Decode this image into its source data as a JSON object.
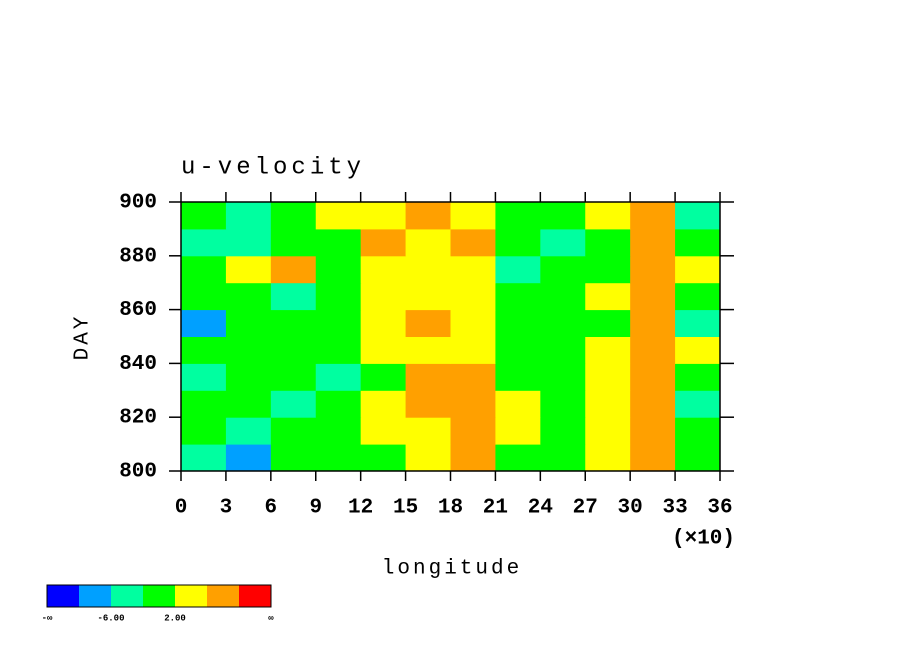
{
  "chart_data": {
    "type": "contour",
    "title": "u-velocity",
    "xlabel": "longitude",
    "ylabel": "DAY",
    "x_multiplier": "(×10)",
    "xlim": [
      0,
      36
    ],
    "xticks": [
      0,
      3,
      6,
      9,
      12,
      15,
      18,
      21,
      24,
      27,
      30,
      33,
      36
    ],
    "ylim": [
      800,
      900
    ],
    "yticks": [
      800,
      820,
      840,
      860,
      880,
      900
    ],
    "x": [
      1.5,
      4.5,
      7.5,
      10.5,
      13.5,
      16.5,
      19.5,
      22.5,
      25.5,
      28.5,
      31.5,
      34.5
    ],
    "y": [
      805,
      815,
      825,
      835,
      845,
      855,
      865,
      875,
      885,
      895
    ],
    "z": [
      [
        -3,
        -7,
        -2,
        0,
        1,
        4,
        9,
        1,
        0,
        4,
        9,
        1
      ],
      [
        -2,
        -3,
        1,
        0,
        2,
        5,
        8,
        2,
        0,
        3,
        8,
        -2
      ],
      [
        0,
        -2,
        -3,
        1,
        3,
        6,
        8,
        2,
        -2,
        4,
        9,
        -3
      ],
      [
        -3,
        1,
        -2,
        -3,
        1,
        7,
        9,
        1,
        -2,
        2,
        6,
        -2
      ],
      [
        -2,
        0,
        1,
        0,
        3,
        5,
        3,
        0,
        1,
        3,
        9,
        2
      ],
      [
        -7,
        1,
        -2,
        1,
        4,
        8,
        4,
        1,
        -2,
        1,
        6,
        -3
      ],
      [
        0,
        1,
        -6,
        0,
        3,
        5,
        2,
        1,
        0,
        4,
        8,
        0
      ],
      [
        -2,
        2,
        8,
        0,
        3,
        4,
        4,
        -3,
        1,
        1,
        6,
        2
      ],
      [
        -3,
        -6,
        1,
        0,
        8,
        4,
        6,
        0,
        -3,
        1,
        9,
        -1
      ],
      [
        -2,
        -3,
        1,
        2,
        4,
        9,
        4,
        -2,
        0,
        2,
        9,
        -5
      ]
    ],
    "colorbar": {
      "colors": [
        "#0000ff",
        "#00a0ff",
        "#00ffa0",
        "#00ff00",
        "#ffff00",
        "#ffa000",
        "#ff0000"
      ],
      "levels": [
        -10,
        -6,
        -2,
        2,
        6,
        10
      ],
      "min_label": "-∞",
      "max_label": "∞",
      "labels": [
        {
          "value": -6,
          "label": "-6.00"
        },
        {
          "value": 2,
          "label": "2.00"
        }
      ]
    }
  }
}
